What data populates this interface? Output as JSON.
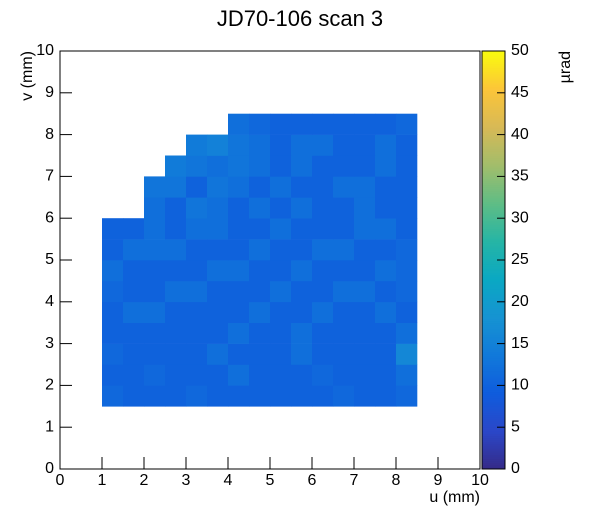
{
  "chart_data": {
    "type": "heatmap",
    "title": "JD70-106 scan 3",
    "xlabel": "u (mm)",
    "ylabel": "v (mm)",
    "zlabel": "µrad",
    "xbins": [
      0,
      0.5,
      1,
      1.5,
      2,
      2.5,
      3,
      3.5,
      4,
      4.5,
      5,
      5.5,
      6,
      6.5,
      7,
      7.5,
      8,
      8.5,
      9,
      9.5,
      10
    ],
    "ybins": [
      0,
      0.5,
      1,
      1.5,
      2,
      2.5,
      3,
      3.5,
      4,
      4.5,
      5,
      5.5,
      6,
      6.5,
      7,
      7.5,
      8,
      8.5,
      9,
      9.5,
      10
    ],
    "z": [
      [
        null,
        null,
        null,
        null,
        null,
        null,
        null,
        null,
        null,
        null,
        null,
        null,
        null,
        null,
        null,
        null,
        null,
        null,
        null,
        null
      ],
      [
        null,
        null,
        null,
        null,
        null,
        null,
        null,
        null,
        null,
        null,
        null,
        null,
        null,
        null,
        null,
        null,
        null,
        null,
        null,
        null
      ],
      [
        null,
        null,
        null,
        null,
        null,
        null,
        null,
        null,
        null,
        null,
        null,
        null,
        null,
        null,
        null,
        null,
        null,
        null,
        null,
        null
      ],
      [
        null,
        null,
        11,
        10,
        10,
        10,
        11,
        10,
        10,
        10,
        10,
        10,
        10,
        11,
        10,
        10,
        11,
        null,
        null,
        null
      ],
      [
        null,
        null,
        10,
        10,
        11,
        10,
        10,
        10,
        12,
        10,
        10,
        10,
        11,
        10,
        10,
        10,
        12,
        null,
        null,
        null
      ],
      [
        null,
        null,
        11,
        10,
        10,
        10,
        10,
        12,
        10,
        10,
        10,
        12,
        10,
        10,
        10,
        10,
        16,
        null,
        null,
        null
      ],
      [
        null,
        null,
        10,
        10,
        10,
        10,
        10,
        10,
        12,
        10,
        10,
        12,
        10,
        10,
        10,
        10,
        12,
        null,
        null,
        null
      ],
      [
        null,
        null,
        10,
        12,
        12,
        10,
        10,
        10,
        10,
        12,
        10,
        10,
        12,
        10,
        10,
        12,
        10,
        null,
        null,
        null
      ],
      [
        null,
        null,
        11,
        10,
        10,
        12,
        12,
        10,
        10,
        10,
        12,
        10,
        10,
        12,
        12,
        10,
        11,
        null,
        null,
        null
      ],
      [
        null,
        null,
        12,
        10,
        10,
        10,
        10,
        12,
        12,
        10,
        10,
        12,
        10,
        10,
        10,
        12,
        11,
        null,
        null,
        null
      ],
      [
        null,
        null,
        10,
        12,
        12,
        12,
        10,
        10,
        10,
        12,
        10,
        10,
        12,
        12,
        10,
        10,
        11,
        null,
        null,
        null
      ],
      [
        null,
        null,
        10,
        10,
        12,
        10,
        12,
        12,
        10,
        10,
        12,
        10,
        10,
        10,
        12,
        12,
        10,
        null,
        null,
        null
      ],
      [
        null,
        null,
        null,
        null,
        12,
        10,
        13,
        12,
        10,
        12,
        10,
        12,
        10,
        10,
        12,
        10,
        10,
        null,
        null,
        null
      ],
      [
        null,
        null,
        null,
        null,
        13,
        13,
        10,
        13,
        12,
        10,
        12,
        10,
        10,
        12,
        12,
        10,
        10,
        null,
        null,
        null
      ],
      [
        null,
        null,
        null,
        null,
        null,
        14,
        13,
        12,
        13,
        12,
        10,
        12,
        10,
        10,
        10,
        12,
        10,
        null,
        null,
        null
      ],
      [
        null,
        null,
        null,
        null,
        null,
        null,
        14,
        15,
        13,
        12,
        10,
        12,
        12,
        10,
        10,
        12,
        10,
        null,
        null,
        null
      ],
      [
        null,
        null,
        null,
        null,
        null,
        null,
        null,
        null,
        12,
        11,
        10,
        10,
        10,
        10,
        10,
        10,
        11,
        null,
        null,
        null
      ],
      [
        null,
        null,
        null,
        null,
        null,
        null,
        null,
        null,
        null,
        null,
        null,
        null,
        null,
        null,
        null,
        null,
        null,
        null,
        null,
        null
      ],
      [
        null,
        null,
        null,
        null,
        null,
        null,
        null,
        null,
        null,
        null,
        null,
        null,
        null,
        null,
        null,
        null,
        null,
        null,
        null,
        null
      ],
      [
        null,
        null,
        null,
        null,
        null,
        null,
        null,
        null,
        null,
        null,
        null,
        null,
        null,
        null,
        null,
        null,
        null,
        null,
        null,
        null
      ]
    ],
    "xlim": [
      0,
      10
    ],
    "ylim": [
      0,
      10
    ],
    "zlim": [
      0,
      50
    ],
    "xticks": [
      0,
      1,
      2,
      3,
      4,
      5,
      6,
      7,
      8,
      9,
      10
    ],
    "yticks": [
      0,
      1,
      2,
      3,
      4,
      5,
      6,
      7,
      8,
      9,
      10
    ],
    "zticks": [
      0,
      5,
      10,
      15,
      20,
      25,
      30,
      35,
      40,
      45,
      50
    ],
    "colorscale": [
      "#352a87",
      "#2b47c8",
      "#0f5cdd",
      "#1179da",
      "#1693d2",
      "#0aa8c3",
      "#26b5a5",
      "#5fbd85",
      "#a2bd6b",
      "#d7b956",
      "#fcc539",
      "#f9fb0e"
    ]
  }
}
